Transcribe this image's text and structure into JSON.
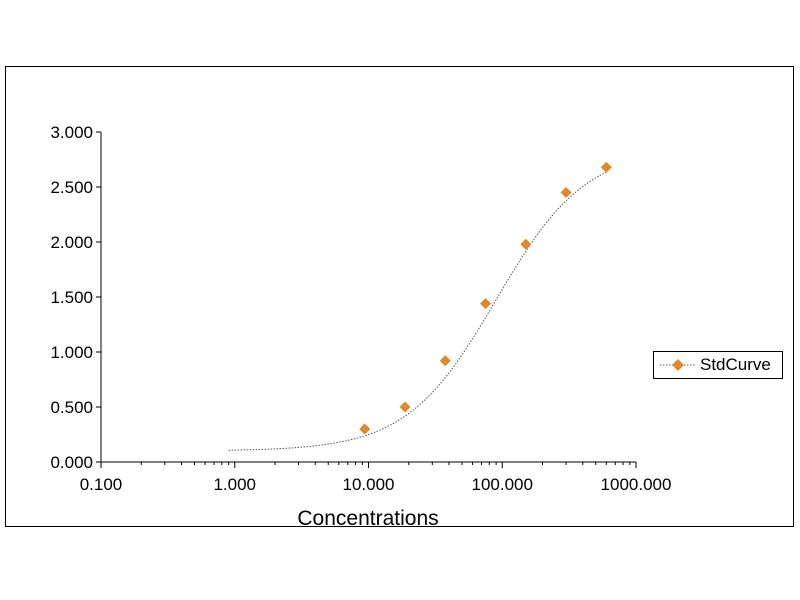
{
  "chart_data": {
    "type": "scatter",
    "title": "",
    "xlabel": "Concentrations",
    "ylabel": "",
    "x_scale": "log",
    "xlim": [
      0.1,
      1000
    ],
    "ylim": [
      0,
      3
    ],
    "x_ticks": [
      "0.100",
      "1.000",
      "10.000",
      "100.000",
      "1000.000"
    ],
    "y_ticks": [
      "0.000",
      "0.500",
      "1.000",
      "1.500",
      "2.000",
      "2.500",
      "3.000"
    ],
    "grid": false,
    "legend_position": "right",
    "series": [
      {
        "name": "StdCurve",
        "marker": "diamond",
        "color": "#E0882A",
        "line_color": "#555555",
        "line_style": "dotted",
        "x": [
          9.375,
          18.75,
          37.5,
          75,
          150,
          300,
          600
        ],
        "y": [
          0.3,
          0.5,
          0.92,
          1.44,
          1.98,
          2.45,
          2.68
        ]
      }
    ]
  }
}
